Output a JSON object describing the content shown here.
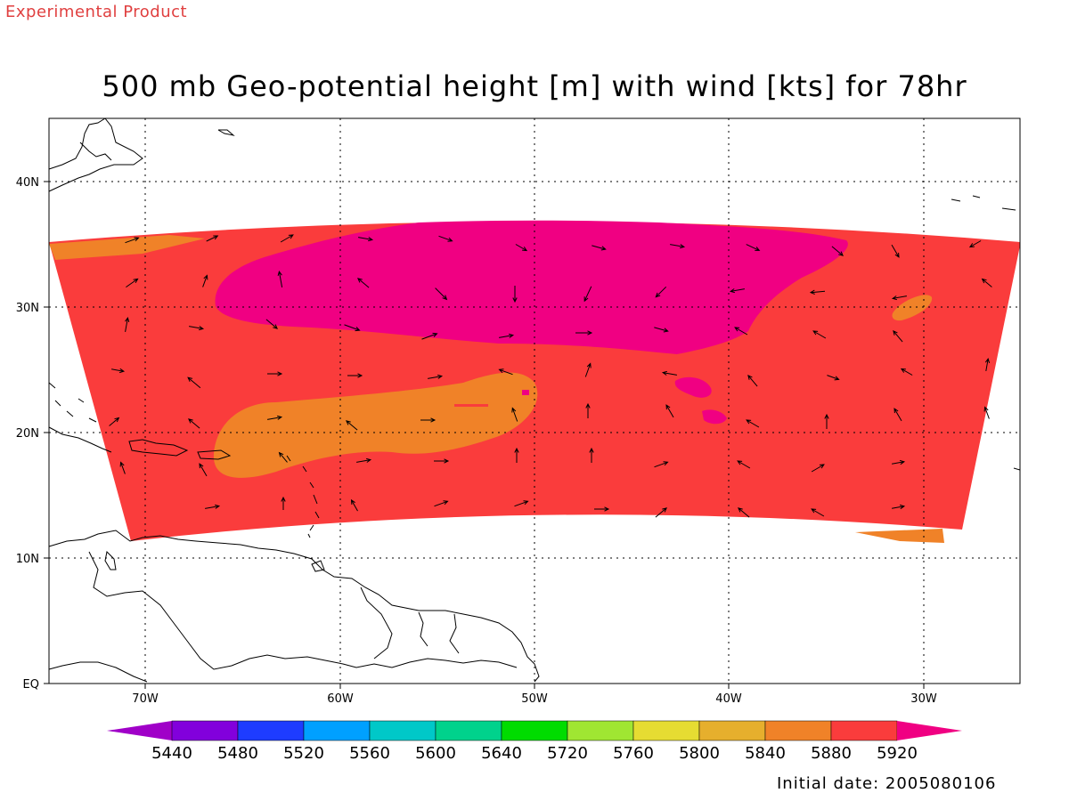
{
  "header": {
    "product_label": "Experimental Product",
    "title": "500 mb Geo-potential height [m] with wind [kts] for 78hr"
  },
  "footer": {
    "initial_date": "Initial date: 2005080106"
  },
  "map": {
    "lon_range": [
      -75,
      -25
    ],
    "lat_range": [
      0,
      45
    ],
    "lon_ticks": [
      {
        "lon": -70,
        "label": "70W"
      },
      {
        "lon": -60,
        "label": "60W"
      },
      {
        "lon": -50,
        "label": "50W"
      },
      {
        "lon": -40,
        "label": "40W"
      },
      {
        "lon": -30,
        "label": "30W"
      }
    ],
    "lat_ticks": [
      {
        "lat": 40,
        "label": "40N"
      },
      {
        "lat": 30,
        "label": "30N"
      },
      {
        "lat": 20,
        "label": "20N"
      },
      {
        "lat": 10,
        "label": "10N"
      },
      {
        "lat": 0,
        "label": "EQ"
      }
    ],
    "grid": "dotted",
    "field": "500 mb geopotential height",
    "field_units": "m",
    "wind_units": "kts",
    "forecast_hour": 78
  },
  "legend": {
    "labels": [
      "5440",
      "5480",
      "5520",
      "5560",
      "5600",
      "5640",
      "5720",
      "5760",
      "5800",
      "5840",
      "5880",
      "5920"
    ],
    "colors": [
      "#a000c8",
      "#8200dc",
      "#1e3cff",
      "#00a0ff",
      "#00c8c8",
      "#00d28c",
      "#00dc00",
      "#a0e632",
      "#e6dc32",
      "#e6af2d",
      "#f08228",
      "#fa3c3c",
      "#f00082"
    ]
  },
  "colors": {
    "band_5880": "#f08228",
    "band_5920": "#fa3c3c",
    "band_above": "#f00082",
    "product_label": "#e04040"
  }
}
